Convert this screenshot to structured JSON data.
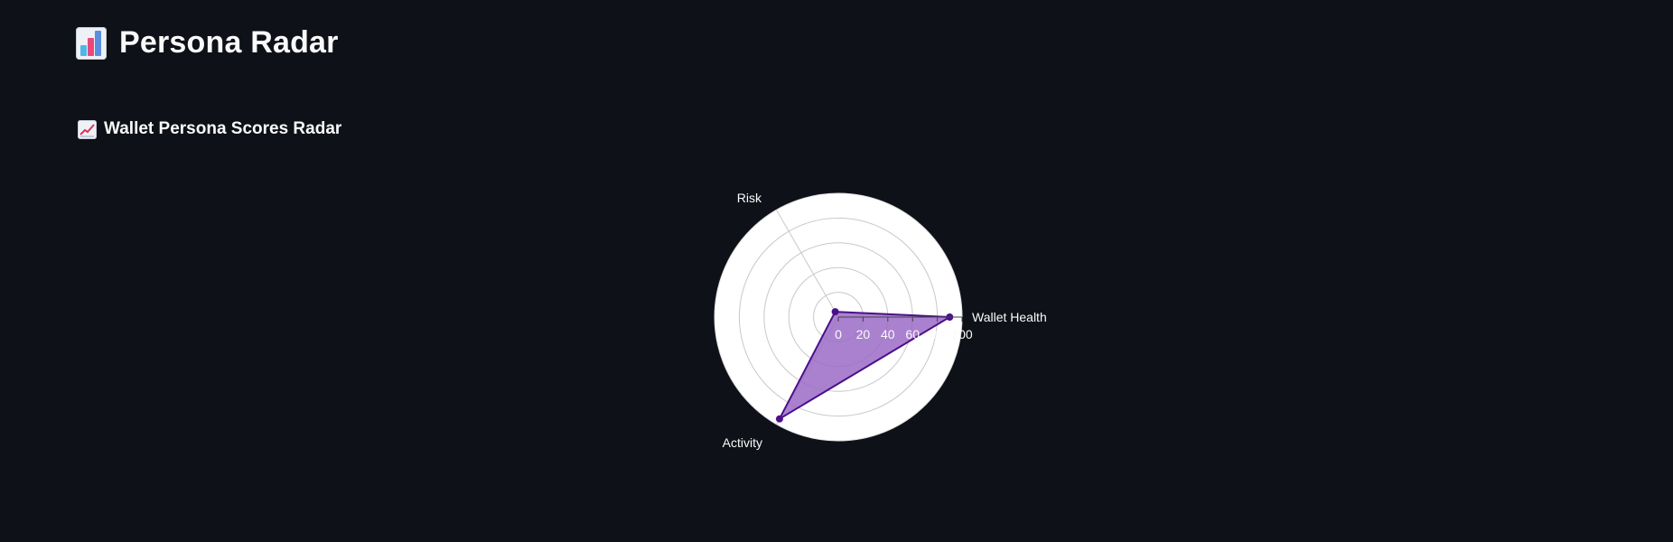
{
  "header": {
    "title": "Persona Radar",
    "title_icon": "bar-chart-emoji-icon"
  },
  "section": {
    "title": "Wallet Persona Scores Radar",
    "icon": "chart-increasing-emoji-icon"
  },
  "chart_data": {
    "type": "radar",
    "axes": [
      "Wallet Health",
      "Risk",
      "Activity"
    ],
    "values": [
      90,
      5,
      95
    ],
    "radial_range": [
      0,
      100
    ],
    "radial_ticks": [
      0,
      20,
      40,
      60,
      80,
      100
    ],
    "radial_tick_labels": [
      "0",
      "20",
      "40",
      "60",
      "80",
      "100"
    ],
    "grid": true,
    "colors": {
      "fill": "#9b6bc6",
      "line": "#4b0f8c",
      "marker": "#4b0f8c",
      "polar_bg": "#ffffff",
      "grid": "#c8c8c8",
      "text": "#fafafa"
    }
  }
}
